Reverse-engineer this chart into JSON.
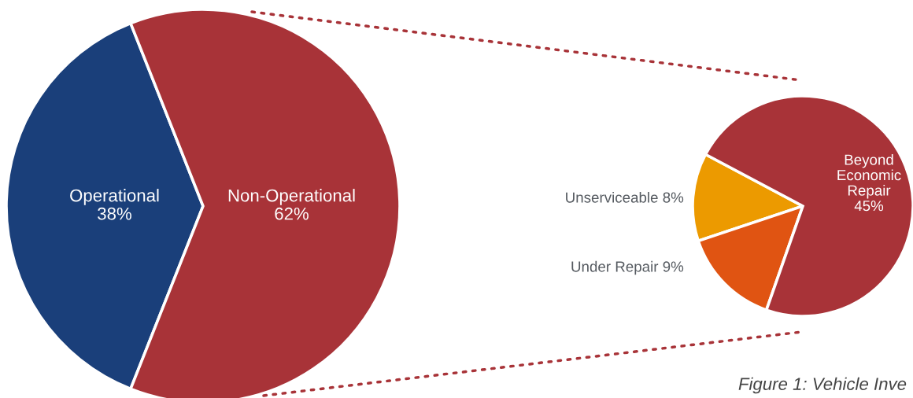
{
  "chart_data": [
    {
      "type": "pie",
      "categories": [
        "Operational",
        "Non-Operational"
      ],
      "values": [
        38,
        62
      ],
      "value_labels": [
        "38%",
        "62%"
      ],
      "colors": [
        "#1a3f7a",
        "#a83338"
      ]
    },
    {
      "type": "pie",
      "categories": [
        "Unserviceable",
        "Under Repair",
        "Beyond Economic Repair"
      ],
      "values": [
        8,
        9,
        45
      ],
      "value_labels": [
        "8%",
        "9%",
        "45%"
      ],
      "colors": [
        "#ec9a00",
        "#e05412",
        "#a83338"
      ],
      "annotations": [
        "Figure 1: Vehicle Inve"
      ]
    }
  ]
}
